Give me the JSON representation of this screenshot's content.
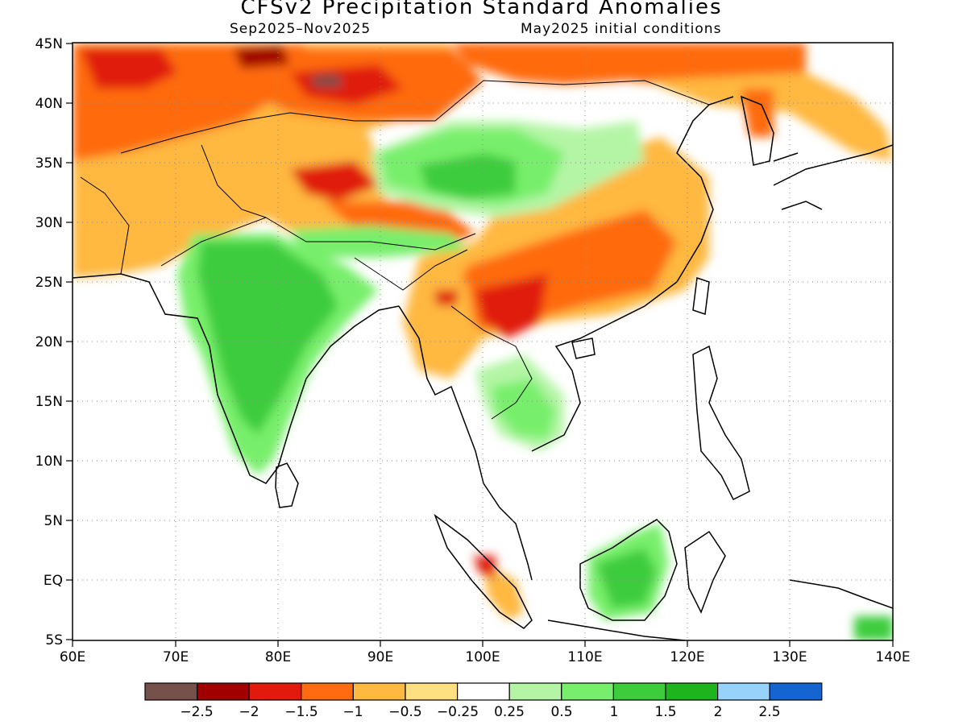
{
  "title": "CFSv2 Precipitation Standard Anomalies",
  "subtitle_left": "Sep2025–Nov2025",
  "subtitle_right": "May2025 initial conditions",
  "axes": {
    "lon_ticks": [
      "60E",
      "70E",
      "80E",
      "90E",
      "100E",
      "110E",
      "120E",
      "130E",
      "140E"
    ],
    "lat_ticks": [
      "45N",
      "40N",
      "35N",
      "30N",
      "25N",
      "20N",
      "15N",
      "10N",
      "5N",
      "EQ",
      "5S"
    ],
    "lon_range": [
      60,
      140
    ],
    "lat_range": [
      -5,
      45
    ],
    "grid": "dotted"
  },
  "colorbar": {
    "colors": [
      "#76504a",
      "#a00000",
      "#e01a0c",
      "#ff6b10",
      "#ffb840",
      "#ffe080",
      "#ffffff",
      "#b4f5a5",
      "#78ef6c",
      "#3ccc3c",
      "#1eb41e",
      "#96d2fa",
      "#1464d2"
    ],
    "labels": [
      "−2.5",
      "−2",
      "−1.5",
      "−1",
      "−0.5",
      "−0.25",
      "0.25",
      "0.5",
      "1",
      "1.5",
      "2",
      "2.5"
    ]
  },
  "regions": [
    {
      "name": "northwest-dry",
      "level": "-1"
    },
    {
      "name": "tibet-wet",
      "level": "1.5"
    },
    {
      "name": "india-wet",
      "level": "1.5"
    },
    {
      "name": "south-china-dry",
      "level": "-1"
    },
    {
      "name": "borneo-wet",
      "level": "1"
    }
  ]
}
